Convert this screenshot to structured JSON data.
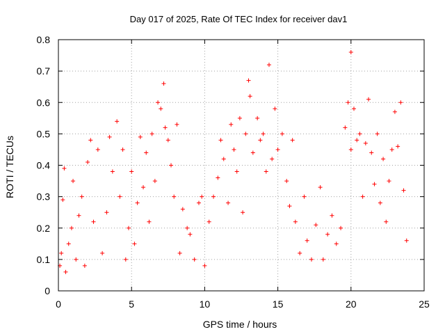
{
  "chart_data": {
    "type": "scatter",
    "title": "Day 017 of 2025, Rate Of TEC Index for receiver dav1",
    "xlabel": "GPS time / hours",
    "ylabel": "ROTI / TECUs",
    "xlim": [
      0,
      25
    ],
    "ylim": [
      0,
      0.8
    ],
    "xticks": [
      "0",
      "5",
      "10",
      "15",
      "20",
      "25"
    ],
    "yticks": [
      "0",
      "0.1",
      "0.2",
      "0.3",
      "0.4",
      "0.5",
      "0.6",
      "0.7",
      "0.8"
    ],
    "grid": true,
    "marker": "+",
    "color": "#ff0000",
    "series": [
      {
        "points": [
          [
            0.1,
            0.08
          ],
          [
            0.2,
            0.12
          ],
          [
            0.3,
            0.29
          ],
          [
            0.4,
            0.39
          ],
          [
            0.5,
            0.06
          ],
          [
            0.7,
            0.15
          ],
          [
            0.9,
            0.2
          ],
          [
            1.0,
            0.35
          ],
          [
            1.2,
            0.1
          ],
          [
            1.4,
            0.24
          ],
          [
            1.6,
            0.3
          ],
          [
            1.8,
            0.08
          ],
          [
            2.0,
            0.41
          ],
          [
            2.2,
            0.48
          ],
          [
            2.4,
            0.22
          ],
          [
            2.7,
            0.45
          ],
          [
            3.0,
            0.12
          ],
          [
            3.3,
            0.25
          ],
          [
            3.5,
            0.49
          ],
          [
            3.7,
            0.38
          ],
          [
            4.0,
            0.54
          ],
          [
            4.2,
            0.3
          ],
          [
            4.4,
            0.45
          ],
          [
            4.6,
            0.1
          ],
          [
            4.8,
            0.2
          ],
          [
            5.0,
            0.38
          ],
          [
            5.2,
            0.15
          ],
          [
            5.4,
            0.28
          ],
          [
            5.6,
            0.49
          ],
          [
            5.8,
            0.33
          ],
          [
            6.0,
            0.44
          ],
          [
            6.2,
            0.22
          ],
          [
            6.4,
            0.5
          ],
          [
            6.6,
            0.35
          ],
          [
            6.8,
            0.6
          ],
          [
            7.0,
            0.58
          ],
          [
            7.2,
            0.66
          ],
          [
            7.3,
            0.52
          ],
          [
            7.5,
            0.48
          ],
          [
            7.7,
            0.4
          ],
          [
            7.9,
            0.3
          ],
          [
            8.1,
            0.53
          ],
          [
            8.3,
            0.12
          ],
          [
            8.5,
            0.26
          ],
          [
            8.8,
            0.2
          ],
          [
            9.0,
            0.18
          ],
          [
            9.3,
            0.1
          ],
          [
            9.6,
            0.28
          ],
          [
            9.8,
            0.3
          ],
          [
            10.0,
            0.08
          ],
          [
            10.3,
            0.22
          ],
          [
            10.6,
            0.3
          ],
          [
            10.9,
            0.36
          ],
          [
            11.1,
            0.48
          ],
          [
            11.3,
            0.42
          ],
          [
            11.6,
            0.28
          ],
          [
            11.8,
            0.53
          ],
          [
            12.0,
            0.45
          ],
          [
            12.2,
            0.38
          ],
          [
            12.4,
            0.55
          ],
          [
            12.6,
            0.25
          ],
          [
            12.8,
            0.5
          ],
          [
            13.0,
            0.67
          ],
          [
            13.1,
            0.62
          ],
          [
            13.3,
            0.44
          ],
          [
            13.6,
            0.55
          ],
          [
            13.8,
            0.48
          ],
          [
            14.0,
            0.5
          ],
          [
            14.2,
            0.38
          ],
          [
            14.4,
            0.72
          ],
          [
            14.6,
            0.42
          ],
          [
            14.8,
            0.58
          ],
          [
            15.0,
            0.45
          ],
          [
            15.3,
            0.5
          ],
          [
            15.6,
            0.35
          ],
          [
            15.8,
            0.27
          ],
          [
            16.0,
            0.48
          ],
          [
            16.2,
            0.22
          ],
          [
            16.5,
            0.12
          ],
          [
            16.8,
            0.3
          ],
          [
            17.0,
            0.16
          ],
          [
            17.3,
            0.1
          ],
          [
            17.6,
            0.21
          ],
          [
            17.9,
            0.33
          ],
          [
            18.1,
            0.1
          ],
          [
            18.4,
            0.18
          ],
          [
            18.7,
            0.24
          ],
          [
            19.0,
            0.15
          ],
          [
            19.3,
            0.2
          ],
          [
            19.6,
            0.52
          ],
          [
            19.8,
            0.6
          ],
          [
            20.0,
            0.45
          ],
          [
            20.2,
            0.58
          ],
          [
            20.4,
            0.48
          ],
          [
            20.6,
            0.5
          ],
          [
            20.8,
            0.3
          ],
          [
            21.0,
            0.47
          ],
          [
            21.2,
            0.61
          ],
          [
            21.4,
            0.44
          ],
          [
            21.6,
            0.34
          ],
          [
            21.8,
            0.5
          ],
          [
            22.0,
            0.28
          ],
          [
            22.2,
            0.42
          ],
          [
            22.4,
            0.22
          ],
          [
            22.6,
            0.35
          ],
          [
            22.8,
            0.45
          ],
          [
            23.0,
            0.57
          ],
          [
            23.2,
            0.46
          ],
          [
            23.4,
            0.6
          ],
          [
            23.6,
            0.32
          ],
          [
            23.8,
            0.16
          ],
          [
            20.0,
            0.76
          ]
        ]
      }
    ]
  }
}
